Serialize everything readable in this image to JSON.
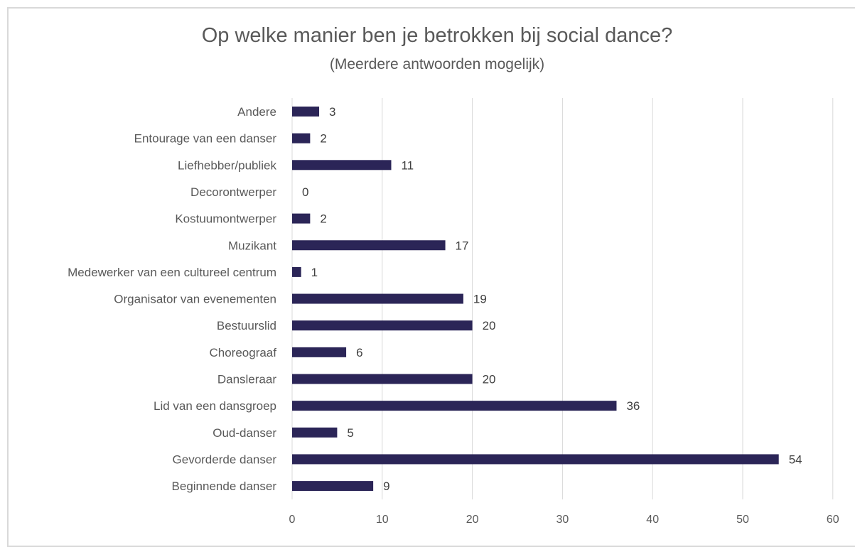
{
  "chart_data": {
    "type": "bar",
    "orientation": "horizontal",
    "title": "Op welke manier ben je betrokken bij social dance?",
    "subtitle": "(Meerdere antwoorden mogelijk)",
    "categories": [
      "Andere",
      "Entourage van een danser",
      "Liefhebber/publiek",
      "Decorontwerper",
      "Kostuumontwerper",
      "Muzikant",
      "Medewerker van een cultureel centrum",
      "Organisator van evenementen",
      "Bestuurslid",
      "Choreograaf",
      "Dansleraar",
      "Lid van een dansgroep",
      "Oud-danser",
      "Gevorderde danser",
      "Beginnende danser"
    ],
    "values": [
      3,
      2,
      11,
      0,
      2,
      17,
      1,
      19,
      20,
      6,
      20,
      36,
      5,
      54,
      9
    ],
    "xticks": [
      "0",
      "10",
      "20",
      "30",
      "40",
      "50",
      "60"
    ],
    "xlim": [
      0,
      60
    ],
    "xlabel": "",
    "ylabel": "",
    "grid": "vertical",
    "legend": "none",
    "data_labels": true,
    "colors": {
      "bar": "#2b2557",
      "grid": "#d9d9d9",
      "frame": "#d9d9d9"
    }
  }
}
